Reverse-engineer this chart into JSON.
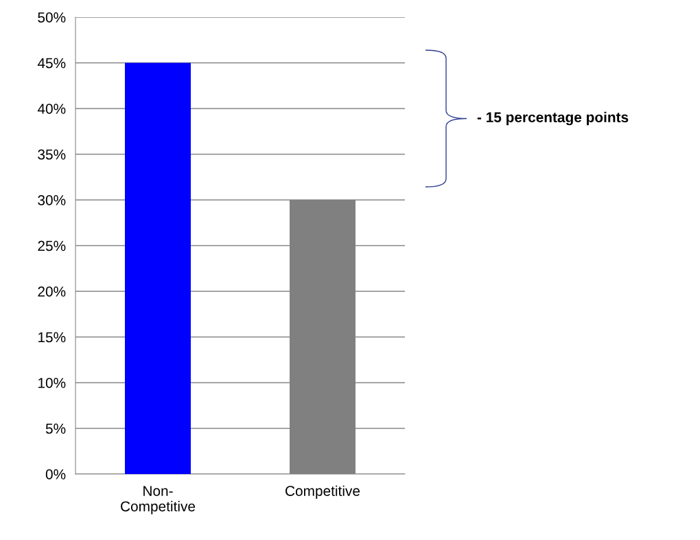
{
  "chart_data": {
    "type": "bar",
    "categories": [
      "Non-\nCompetitive",
      "Competitive"
    ],
    "colors": [
      "#0000ff",
      "#808080"
    ],
    "values": [
      45,
      30
    ],
    "ylim": [
      0,
      50
    ],
    "yticks": [
      {
        "value": 0,
        "label": "0%"
      },
      {
        "value": 5,
        "label": "5%"
      },
      {
        "value": 10,
        "label": "10%"
      },
      {
        "value": 15,
        "label": "15%"
      },
      {
        "value": 20,
        "label": "20%"
      },
      {
        "value": 25,
        "label": "25%"
      },
      {
        "value": 30,
        "label": "30%"
      },
      {
        "value": 35,
        "label": "35%"
      },
      {
        "value": 40,
        "label": "40%"
      },
      {
        "value": 45,
        "label": "45%"
      },
      {
        "value": 50,
        "label": "50%"
      }
    ],
    "grid": "y",
    "annotations": [
      "- 15 percentage points"
    ]
  }
}
